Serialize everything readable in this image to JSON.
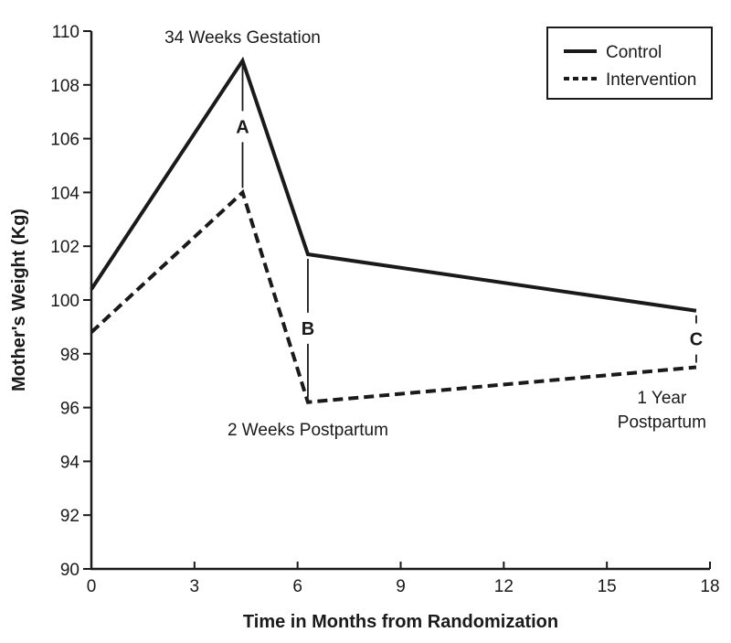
{
  "chart_data": {
    "type": "line",
    "title": "",
    "xlabel": "Time in Months from Randomization",
    "ylabel": "Mother's Weight (Kg)",
    "xlim": [
      0,
      18
    ],
    "ylim": [
      90,
      110
    ],
    "xticks": [
      0,
      3,
      6,
      9,
      12,
      15,
      18
    ],
    "yticks": [
      90,
      92,
      94,
      96,
      98,
      100,
      102,
      104,
      106,
      108,
      110
    ],
    "grid": false,
    "legend_position": "top-right",
    "series": [
      {
        "name": "Control",
        "style": "solid",
        "x": [
          0,
          4.4,
          6.3,
          17.6
        ],
        "y": [
          100.4,
          108.9,
          101.7,
          99.6
        ]
      },
      {
        "name": "Intervention",
        "style": "dashed",
        "x": [
          0,
          4.4,
          6.3,
          17.6
        ],
        "y": [
          98.8,
          104.0,
          96.2,
          97.5
        ]
      }
    ],
    "connectors": [
      {
        "x": 4.4,
        "y1": 108.9,
        "y2": 104.0,
        "label": "A"
      },
      {
        "x": 6.3,
        "y1": 101.7,
        "y2": 96.2,
        "label": "B"
      },
      {
        "x": 17.6,
        "y1": 99.6,
        "y2": 97.5,
        "label": "C"
      }
    ],
    "annotations": [
      {
        "text": "34 Weeks Gestation",
        "x": 4.4,
        "y": 109.8
      },
      {
        "text": "2 Weeks Postpartum",
        "x": 6.3,
        "y": 95.2
      },
      {
        "text": "1 Year",
        "x": 16.6,
        "y": 96.4
      },
      {
        "text": "Postpartum",
        "x": 16.6,
        "y": 95.5
      }
    ],
    "colors": {
      "line": "#1a1a1a",
      "text": "#1a1a1a",
      "background": "#ffffff"
    }
  }
}
